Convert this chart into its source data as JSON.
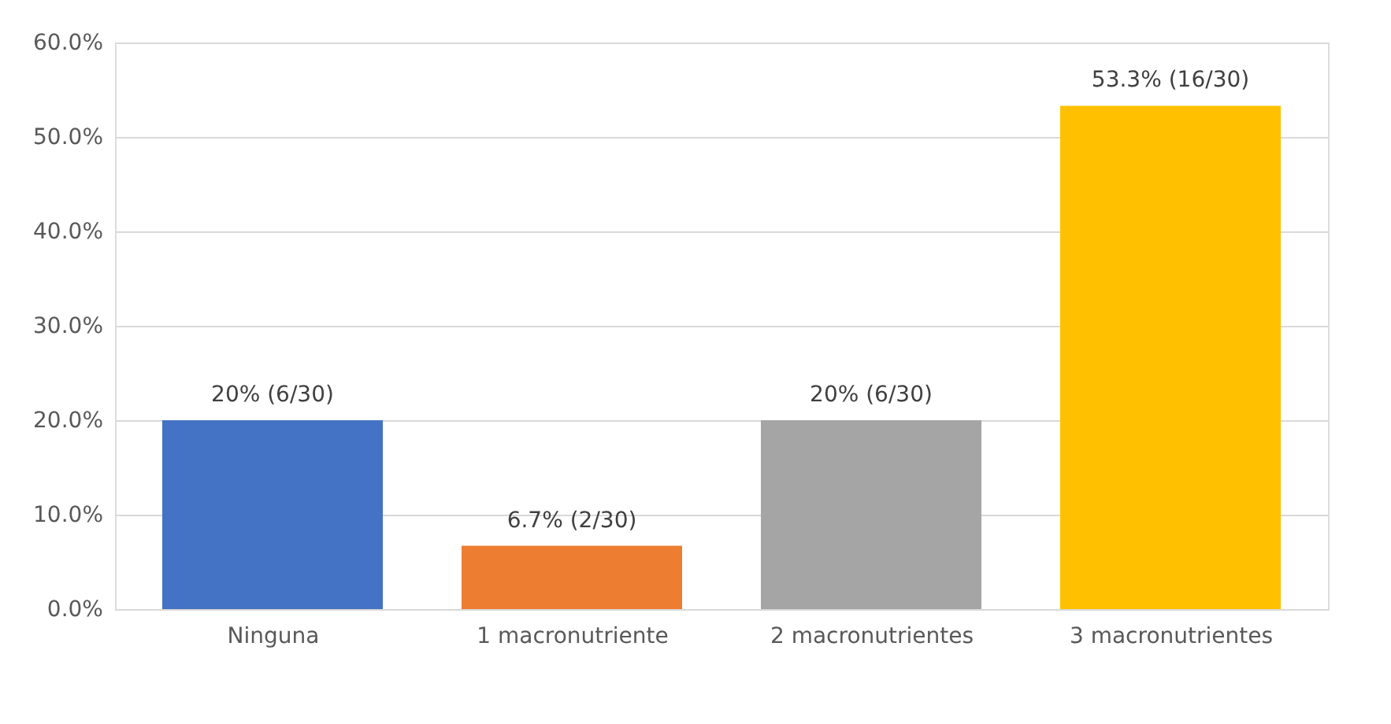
{
  "chart_data": {
    "type": "bar",
    "categories": [
      "Ninguna",
      "1 macronutriente",
      "2 macronutrientes",
      "3 macronutrientes"
    ],
    "values": [
      20,
      6.7,
      20,
      53.3
    ],
    "colors": [
      "#4472c4",
      "#ed7d31",
      "#a5a5a5",
      "#ffc000"
    ],
    "value_labels": [
      "20% (6/30)",
      "6.7% (2/30)",
      "20% (6/30)",
      "53.3% (16/30)"
    ],
    "ylim": [
      0,
      60
    ],
    "yticks": [
      {
        "value": 0,
        "label": "0.0%"
      },
      {
        "value": 10,
        "label": "10.0%"
      },
      {
        "value": 20,
        "label": "20.0%"
      },
      {
        "value": 30,
        "label": "30.0%"
      },
      {
        "value": 40,
        "label": "40.0%"
      },
      {
        "value": 50,
        "label": "50.0%"
      },
      {
        "value": 60,
        "label": "60.0%"
      }
    ],
    "grid": "y"
  }
}
